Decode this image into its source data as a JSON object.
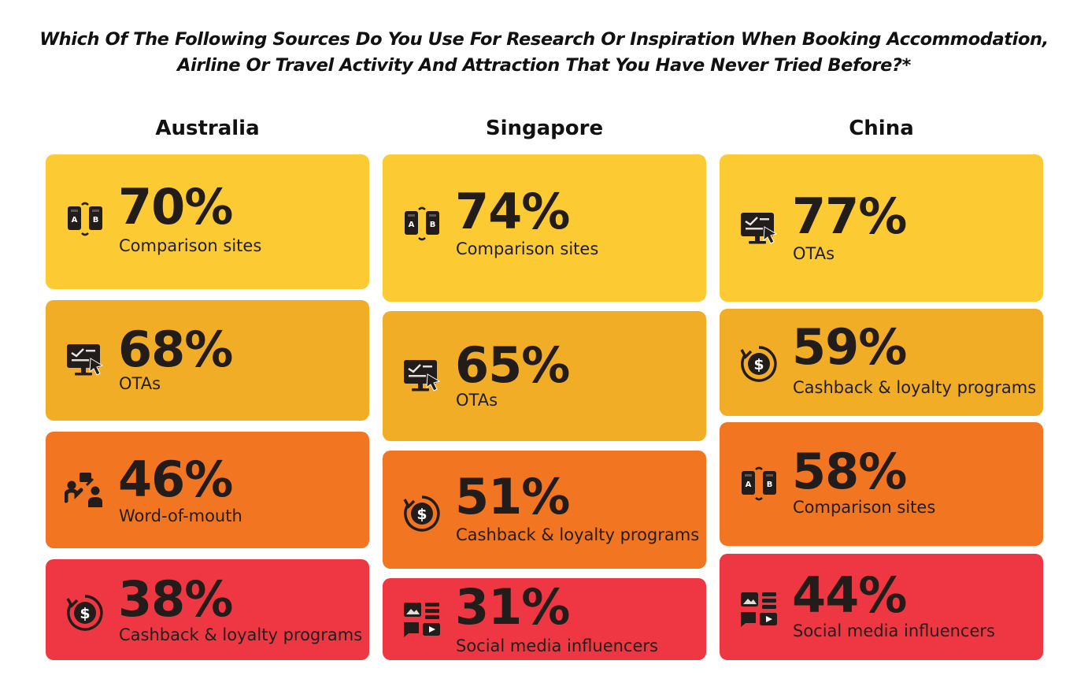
{
  "title_line1": "Which Of The Following Sources Do You Use For Research Or Inspiration When Booking Accommodation,",
  "title_line2": "Airline Or Travel Activity And Attraction That You Have Never Tried Before?*",
  "colors": {
    "yellow": "#fccb33",
    "amber": "#f2ad26",
    "orange": "#f27521",
    "red": "#ee3743",
    "icon": "#221d1a"
  },
  "chart_data": {
    "type": "table",
    "title": "Which Of The Following Sources Do You Use For Research Or Inspiration When Booking Accommodation, Airline Or Travel Activity And Attraction That You Have Never Tried Before?*",
    "unit": "%",
    "columns": [
      {
        "country": "Australia",
        "items": [
          {
            "value": 70,
            "value_text": "70%",
            "label": "Comparison sites",
            "icon": "comparison-icon",
            "color": "#fccb33"
          },
          {
            "value": 68,
            "value_text": "68%",
            "label": "OTAs",
            "icon": "ota-monitor-icon",
            "color": "#f2ad26"
          },
          {
            "value": 46,
            "value_text": "46%",
            "label": "Word-of-mouth",
            "icon": "word-of-mouth-icon",
            "color": "#f27521"
          },
          {
            "value": 38,
            "value_text": "38%",
            "label": "Cashback & loyalty programs",
            "icon": "cashback-icon",
            "color": "#ee3743"
          }
        ]
      },
      {
        "country": "Singapore",
        "items": [
          {
            "value": 74,
            "value_text": "74%",
            "label": "Comparison sites",
            "icon": "comparison-icon",
            "color": "#fccb33"
          },
          {
            "value": 65,
            "value_text": "65%",
            "label": "OTAs",
            "icon": "ota-monitor-icon",
            "color": "#f2ad26"
          },
          {
            "value": 51,
            "value_text": "51%",
            "label": "Cashback & loyalty programs",
            "icon": "cashback-icon",
            "color": "#f27521"
          },
          {
            "value": 31,
            "value_text": "31%",
            "label": "Social media influencers",
            "icon": "social-media-icon",
            "color": "#ee3743"
          }
        ]
      },
      {
        "country": "China",
        "items": [
          {
            "value": 77,
            "value_text": "77%",
            "label": "OTAs",
            "icon": "ota-monitor-icon",
            "color": "#fccb33"
          },
          {
            "value": 59,
            "value_text": "59%",
            "label": "Cashback & loyalty programs",
            "icon": "cashback-icon",
            "color": "#f2ad26"
          },
          {
            "value": 58,
            "value_text": "58%",
            "label": "Comparison sites",
            "icon": "comparison-icon",
            "color": "#f27521"
          },
          {
            "value": 44,
            "value_text": "44%",
            "label": "Social media influencers",
            "icon": "social-media-icon",
            "color": "#ee3743"
          }
        ]
      }
    ]
  }
}
